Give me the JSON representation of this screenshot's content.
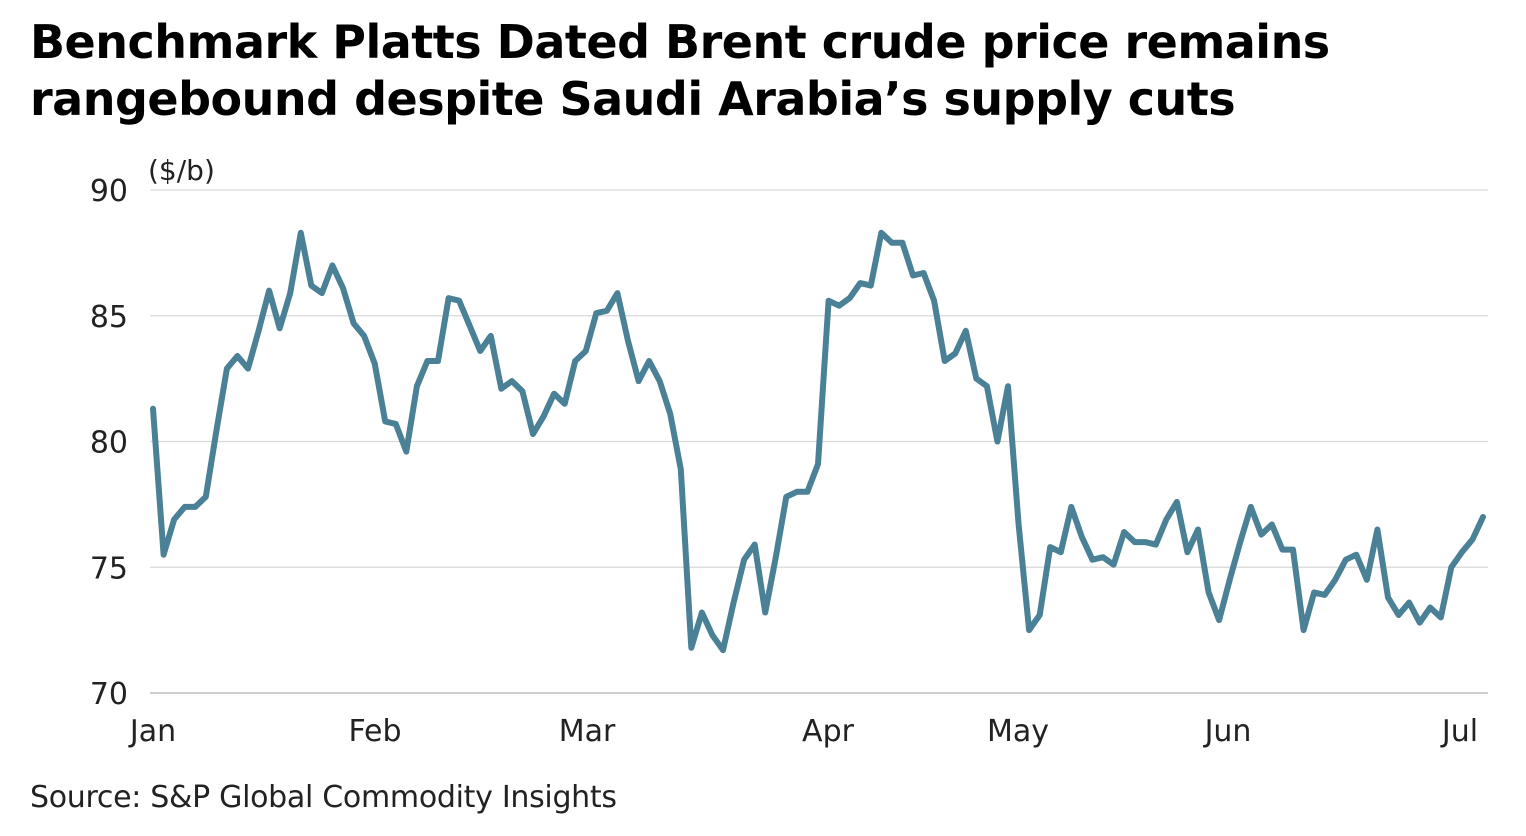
{
  "chart_data": {
    "type": "line",
    "title": "Benchmark Platts Dated Brent crude price remains rangebound despite Saudi Arabia’s supply cuts",
    "ylabel": "($/b)",
    "xlabel": "",
    "ylim": [
      70,
      90
    ],
    "yticks": [
      "70",
      "75",
      "80",
      "85",
      "90"
    ],
    "xticks": [
      "Jan",
      "Feb",
      "Mar",
      "Apr",
      "May",
      "Jun",
      "Jul"
    ],
    "grid": "horizontal",
    "line_color": "#4a8196",
    "series": [
      {
        "values": [
          81.3,
          75.5,
          76.9,
          77.4,
          77.4,
          77.8,
          80.4,
          82.9,
          83.4,
          82.9,
          84.4,
          86.0,
          84.5,
          85.9,
          88.3,
          86.2,
          85.9,
          87.0,
          86.1,
          84.7,
          84.2,
          83.1,
          80.8,
          80.7,
          79.6,
          82.2,
          83.2,
          83.2,
          85.7,
          85.6,
          84.6,
          83.6,
          84.2,
          82.1,
          82.4,
          82.0,
          80.3,
          81.0,
          81.9,
          81.5,
          83.2,
          83.6,
          85.1,
          85.2,
          85.9,
          84.0,
          82.4,
          83.2,
          82.4,
          81.1,
          78.9,
          71.8,
          73.2,
          72.3,
          71.7,
          73.6,
          75.3,
          75.9,
          73.2,
          75.4,
          77.8,
          78.0,
          78.0,
          79.1,
          85.6,
          85.4,
          85.7,
          86.3,
          86.2,
          88.3,
          87.9,
          87.9,
          86.6,
          86.7,
          85.6,
          83.2,
          83.5,
          84.4,
          82.5,
          82.2,
          80.0,
          82.2,
          76.7,
          72.5,
          73.1,
          75.8,
          75.6,
          77.4,
          76.2,
          75.3,
          75.4,
          75.1,
          76.4,
          76.0,
          76.0,
          75.9,
          76.9,
          77.6,
          75.6,
          76.5,
          74.0,
          72.9,
          74.5,
          76.0,
          77.4,
          76.3,
          76.7,
          75.7,
          75.7,
          72.5,
          74.0,
          73.9,
          74.5,
          75.3,
          75.5,
          74.5,
          76.5,
          73.8,
          73.1,
          73.6,
          72.8,
          73.4,
          73.0,
          75.0,
          75.6,
          76.1,
          77.0
        ]
      }
    ]
  },
  "source": "Source: S&P Global Commodity Insights"
}
